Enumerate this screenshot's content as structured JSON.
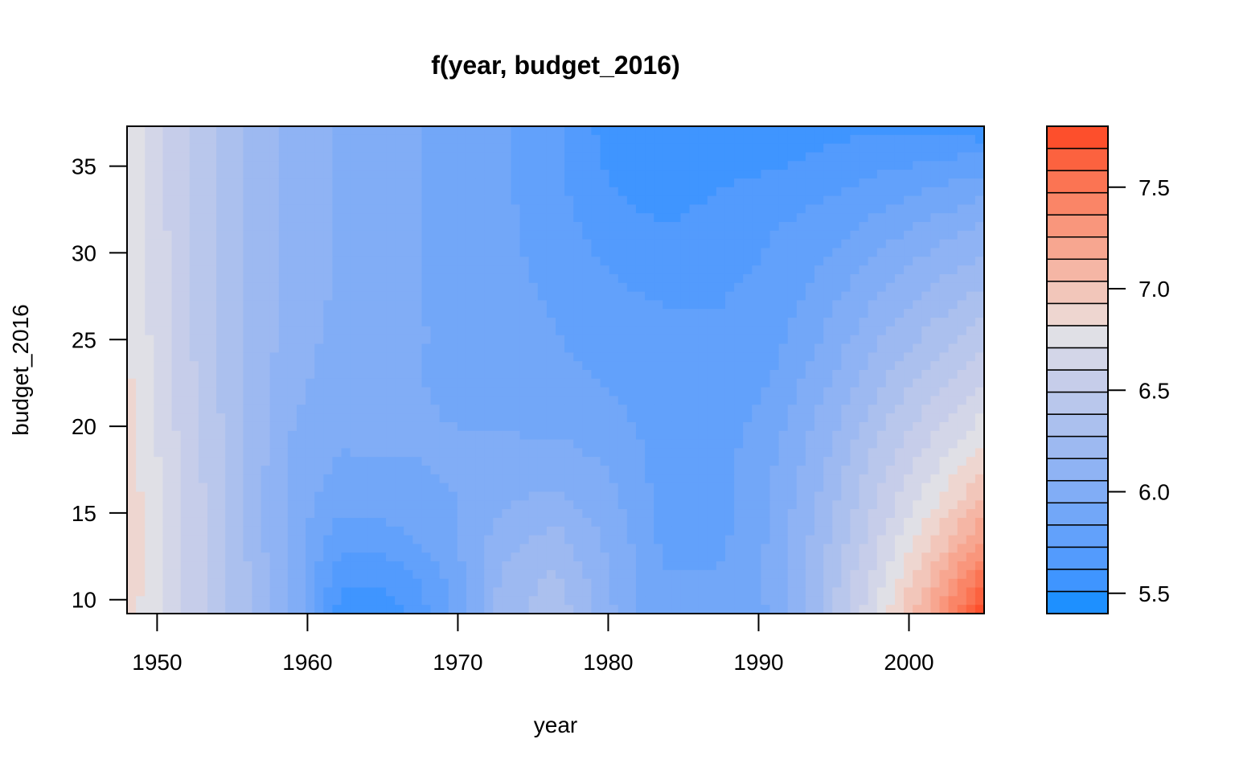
{
  "chart_data": {
    "type": "heatmap",
    "subtype": "filled-contour",
    "title": "f(year, budget_2016)",
    "xlabel": "year",
    "ylabel": "budget_2016",
    "xlim": [
      1948,
      2005
    ],
    "ylim": [
      9.2,
      37.3
    ],
    "x_ticks": [
      1950,
      1960,
      1970,
      1980,
      1990,
      2000
    ],
    "y_ticks": [
      10,
      15,
      20,
      25,
      30,
      35
    ],
    "legend": {
      "position": "right",
      "min": 5.4,
      "max": 7.8,
      "ticks": [
        5.5,
        6.0,
        6.5,
        7.0,
        7.5
      ],
      "colors": [
        "#1e90ff",
        "#3f95ff",
        "#539bfd",
        "#62a1fb",
        "#72a7f8",
        "#81adf6",
        "#8fb3f4",
        "#9db9f1",
        "#abc0ee",
        "#b9c7ec",
        "#c6cdea",
        "#d3d6e8",
        "#e0e0e6",
        "#eed6d0",
        "#f2c6ba",
        "#f5b6a5",
        "#f7a690",
        "#f9967c",
        "#fa8567",
        "#fb7453",
        "#fc623f",
        "#fd4f2c"
      ]
    },
    "grid": {
      "x": [
        1948,
        1951.5625,
        1955.125,
        1958.6875,
        1962.25,
        1965.8125,
        1969.375,
        1972.9375,
        1976.5,
        1980.0625,
        1983.625,
        1987.1875,
        1990.75,
        1994.3125,
        1997.875,
        2001.4375,
        2005
      ],
      "y": [
        9.2,
        11.21,
        13.21,
        15.22,
        17.23,
        19.24,
        21.24,
        23.25,
        25.26,
        27.26,
        29.27,
        31.28,
        33.29,
        35.29,
        37.3
      ],
      "z": [
        [
          6.88,
          6.6,
          6.36,
          6.1,
          5.55,
          5.58,
          5.82,
          6.22,
          6.36,
          6.08,
          5.85,
          5.88,
          5.95,
          6.3,
          6.72,
          7.2,
          7.8
        ],
        [
          6.9,
          6.62,
          6.36,
          6.06,
          5.63,
          5.65,
          5.85,
          6.18,
          6.3,
          6.06,
          5.84,
          5.85,
          5.96,
          6.28,
          6.66,
          7.05,
          7.55
        ],
        [
          6.9,
          6.62,
          6.34,
          6.03,
          5.75,
          5.78,
          5.9,
          6.12,
          6.22,
          6.03,
          5.82,
          5.8,
          5.96,
          6.24,
          6.58,
          6.92,
          7.3
        ],
        [
          6.9,
          6.62,
          6.33,
          6.03,
          5.85,
          5.88,
          5.93,
          6.05,
          6.11,
          5.99,
          5.8,
          5.79,
          5.95,
          6.2,
          6.52,
          6.8,
          7.1
        ],
        [
          6.88,
          6.6,
          6.33,
          6.04,
          5.92,
          5.93,
          5.95,
          6.0,
          6.02,
          5.95,
          5.79,
          5.79,
          5.93,
          6.17,
          6.45,
          6.7,
          6.95
        ],
        [
          6.86,
          6.58,
          6.33,
          6.06,
          5.96,
          5.96,
          5.95,
          5.95,
          5.95,
          5.9,
          5.79,
          5.78,
          5.9,
          6.12,
          6.38,
          6.6,
          6.8
        ],
        [
          6.85,
          6.56,
          6.32,
          6.08,
          5.98,
          5.96,
          5.94,
          5.92,
          5.9,
          5.85,
          5.79,
          5.77,
          5.86,
          6.07,
          6.3,
          6.5,
          6.68
        ],
        [
          6.84,
          6.55,
          6.32,
          6.1,
          6.0,
          5.96,
          5.93,
          5.9,
          5.86,
          5.82,
          5.78,
          5.76,
          5.82,
          6.01,
          6.22,
          6.4,
          6.56
        ],
        [
          6.83,
          6.54,
          6.32,
          6.12,
          6.02,
          5.97,
          5.93,
          5.89,
          5.84,
          5.79,
          5.76,
          5.75,
          5.78,
          5.95,
          6.14,
          6.3,
          6.44
        ],
        [
          6.82,
          6.53,
          6.32,
          6.13,
          6.03,
          5.97,
          5.92,
          5.88,
          5.82,
          5.76,
          5.72,
          5.72,
          5.76,
          5.9,
          6.06,
          6.2,
          6.32
        ],
        [
          6.82,
          6.53,
          6.31,
          6.14,
          6.04,
          5.97,
          5.92,
          5.87,
          5.8,
          5.72,
          5.67,
          5.7,
          5.74,
          5.84,
          5.98,
          6.1,
          6.2
        ],
        [
          6.81,
          6.53,
          6.31,
          6.14,
          6.04,
          5.97,
          5.92,
          5.86,
          5.78,
          5.68,
          5.62,
          5.67,
          5.72,
          5.78,
          5.89,
          5.99,
          6.08
        ],
        [
          6.8,
          6.53,
          6.31,
          6.14,
          6.04,
          5.97,
          5.92,
          5.86,
          5.76,
          5.63,
          5.58,
          5.62,
          5.66,
          5.72,
          5.79,
          5.86,
          5.94
        ],
        [
          6.8,
          6.53,
          6.31,
          6.13,
          6.03,
          5.97,
          5.92,
          5.85,
          5.75,
          5.6,
          5.55,
          5.58,
          5.6,
          5.64,
          5.69,
          5.72,
          5.78
        ],
        [
          6.8,
          6.53,
          6.3,
          6.13,
          6.03,
          5.97,
          5.91,
          5.85,
          5.74,
          5.57,
          5.51,
          5.55,
          5.56,
          5.58,
          5.6,
          5.57,
          5.52
        ]
      ]
    }
  }
}
